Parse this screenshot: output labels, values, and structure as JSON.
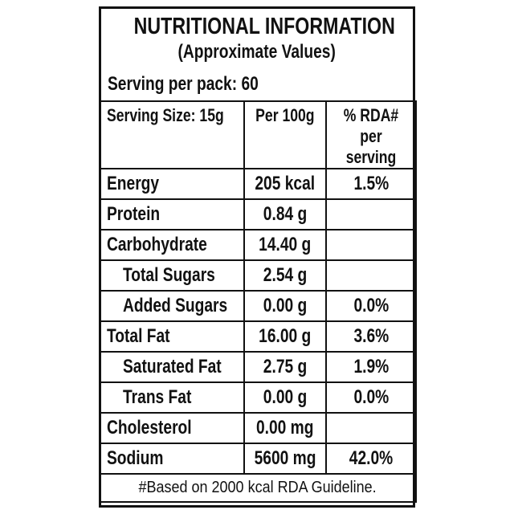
{
  "header": {
    "title": "NUTRITIONAL INFORMATION",
    "subtitle": "(Approximate Values)",
    "servings": "Serving per pack: 60"
  },
  "table": {
    "columns": [
      "Serving Size: 15g",
      "Per 100g",
      "% RDA# per serving"
    ],
    "rows": [
      {
        "nutrient": "Energy",
        "per_100g": "205 kcal",
        "rda": "1.5%",
        "level": 0
      },
      {
        "nutrient": "Protein",
        "per_100g": "0.84 g",
        "rda": null,
        "level": 0
      },
      {
        "nutrient": "Carbohydrate",
        "per_100g": "14.40 g",
        "rda": null,
        "level": 0
      },
      {
        "nutrient": "Total Sugars",
        "per_100g": "2.54 g",
        "rda": null,
        "level": 1
      },
      {
        "nutrient": "Added Sugars",
        "per_100g": "0.00 g",
        "rda": "0.0%",
        "level": 1
      },
      {
        "nutrient": "Total Fat",
        "per_100g": "16.00 g",
        "rda": "3.6%",
        "level": 0
      },
      {
        "nutrient": "Saturated Fat",
        "per_100g": "2.75 g",
        "rda": "1.9%",
        "level": 1
      },
      {
        "nutrient": "Trans Fat",
        "per_100g": "0.00 g",
        "rda": "0.0%",
        "level": 1
      },
      {
        "nutrient": "Cholesterol",
        "per_100g": "0.00 mg",
        "rda": null,
        "level": 0
      },
      {
        "nutrient": "Sodium",
        "per_100g": "5600 mg",
        "rda": "42.0%",
        "level": 0
      }
    ]
  },
  "footer": "#Based on 2000 kcal RDA Guideline."
}
